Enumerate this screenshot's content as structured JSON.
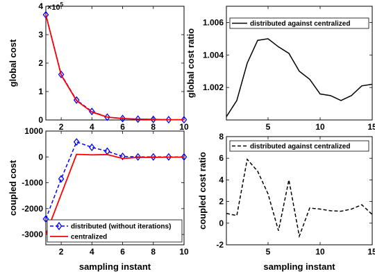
{
  "chart_data": [
    {
      "type": "line",
      "ylabel": "global cost",
      "xlabel": "",
      "y_exponent_label": "×10",
      "y_exponent_power": "5",
      "xlim": [
        1,
        10
      ],
      "ylim": [
        0,
        4
      ],
      "xticks": [
        2,
        4,
        6,
        8,
        10
      ],
      "yticks": [
        0,
        1,
        2,
        3,
        4
      ],
      "xtick_labels": [
        "2",
        "4",
        "6",
        "8",
        "10"
      ],
      "ytick_labels": [
        "0",
        "1",
        "2",
        "3",
        "4"
      ],
      "x": [
        1,
        2,
        3,
        4,
        5,
        6,
        7,
        8,
        9,
        10
      ],
      "series": [
        {
          "key": "dist",
          "color": "#0000ff",
          "style": "dashed",
          "marker": "diamond",
          "values": [
            3.7,
            1.6,
            0.7,
            0.3,
            0.1,
            0.05,
            0.03,
            0.02,
            0.01,
            0.01
          ]
        },
        {
          "key": "cent",
          "color": "#ff0000",
          "style": "solid",
          "values": [
            3.7,
            1.58,
            0.68,
            0.28,
            0.1,
            0.05,
            0.03,
            0.02,
            0.01,
            0.01
          ]
        }
      ],
      "grid": false
    },
    {
      "type": "line",
      "ylabel": "global cost ratio",
      "xlabel": "",
      "xlim": [
        1,
        15
      ],
      "ylim": [
        1.0,
        1.007
      ],
      "xticks": [
        5,
        10,
        15
      ],
      "yticks": [
        1.002,
        1.004,
        1.006
      ],
      "xtick_labels": [
        "5",
        "10",
        "15"
      ],
      "ytick_labels": [
        "1.002",
        "1.004",
        "1.006"
      ],
      "legend": {
        "position": "top",
        "entries": [
          {
            "name": "distributed against centralized",
            "series": "ratio"
          }
        ]
      },
      "x": [
        1,
        2,
        3,
        4,
        5,
        6,
        7,
        8,
        9,
        10,
        11,
        12,
        13,
        14,
        15
      ],
      "series": [
        {
          "key": "ratio",
          "name": "distributed against centralized",
          "color": "#000000",
          "style": "solid",
          "values": [
            1.0002,
            1.0012,
            1.0035,
            1.0049,
            1.005,
            1.0045,
            1.0041,
            1.003,
            1.0025,
            1.0016,
            1.0015,
            1.0012,
            1.0015,
            1.0021,
            1.0022
          ]
        }
      ],
      "grid": false
    },
    {
      "type": "line",
      "ylabel": "coupled cost",
      "xlabel": "sampling instant",
      "xlim": [
        1,
        10
      ],
      "ylim": [
        -3400,
        1000
      ],
      "xticks": [
        2,
        4,
        6,
        8,
        10
      ],
      "yticks": [
        -3000,
        -2000,
        -1000,
        0,
        1000
      ],
      "xtick_labels": [
        "2",
        "4",
        "6",
        "8",
        "10"
      ],
      "ytick_labels": [
        "-3000",
        "-2000",
        "-1000",
        "0",
        "1000"
      ],
      "legend": {
        "position": "bottom",
        "entries": [
          {
            "name": "distributed (without iterations)",
            "series": "dist"
          },
          {
            "name": "centralized",
            "series": "cent"
          }
        ]
      },
      "x": [
        1,
        2,
        3,
        4,
        5,
        6,
        7,
        8,
        9,
        10
      ],
      "series": [
        {
          "key": "dist",
          "name": "distributed (without iterations)",
          "color": "#0000ff",
          "style": "dashed",
          "marker": "diamond",
          "values": [
            -2400,
            -850,
            580,
            370,
            220,
            20,
            0,
            0,
            0,
            0
          ]
        },
        {
          "key": "cent",
          "name": "centralized",
          "color": "#ff0000",
          "style": "solid",
          "values": [
            -3000,
            -1450,
            100,
            80,
            90,
            -60,
            -20,
            -20,
            -10,
            -10
          ]
        }
      ],
      "grid": false
    },
    {
      "type": "line",
      "ylabel": "coupled cost ratio",
      "xlabel": "sampling instant",
      "xlim": [
        1,
        15
      ],
      "ylim": [
        -2,
        8
      ],
      "xticks": [
        5,
        10,
        15
      ],
      "yticks": [
        -2,
        0,
        2,
        4,
        6,
        8
      ],
      "xtick_labels": [
        "5",
        "10",
        "15"
      ],
      "ytick_labels": [
        "-2",
        "0",
        "2",
        "4",
        "6",
        "8"
      ],
      "legend": {
        "position": "top",
        "entries": [
          {
            "name": "distributed against centralized",
            "series": "ratio"
          }
        ]
      },
      "x": [
        1,
        2,
        3,
        4,
        5,
        6,
        7,
        8,
        9,
        10,
        11,
        12,
        13,
        14,
        15
      ],
      "series": [
        {
          "key": "ratio",
          "name": "distributed against centralized",
          "color": "#000000",
          "style": "dashed",
          "values": [
            0.9,
            0.7,
            5.9,
            4.8,
            2.7,
            -0.7,
            4.0,
            -1.2,
            1.4,
            1.3,
            1.15,
            1.1,
            1.3,
            1.7,
            0.8
          ]
        }
      ],
      "grid": false
    }
  ]
}
